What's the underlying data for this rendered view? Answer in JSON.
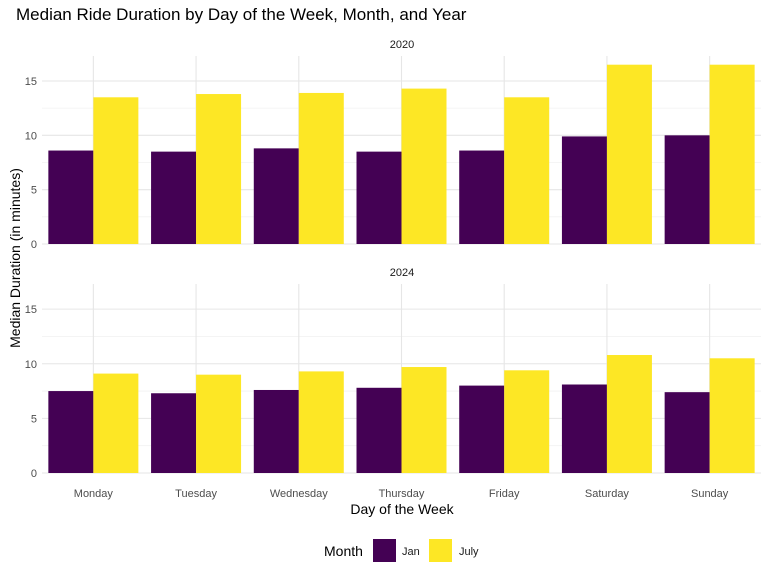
{
  "chart_data": {
    "type": "bar",
    "title": "Median Ride Duration by Day of the Week, Month, and Year",
    "xlabel": "Day of the Week",
    "ylabel": "Median Duration (in minutes)",
    "categories": [
      "Monday",
      "Tuesday",
      "Wednesday",
      "Thursday",
      "Friday",
      "Saturday",
      "Sunday"
    ],
    "ylim": [
      0,
      17.3
    ],
    "yticks": [
      "0",
      "5",
      "10",
      "15"
    ],
    "grid": true,
    "legend": {
      "title": "Month",
      "placement": "bottom",
      "entries": [
        "Jan",
        "July"
      ]
    },
    "colors": {
      "Jan": "#440154",
      "July": "#FDE725"
    },
    "panels": [
      {
        "label": "2020",
        "series": [
          {
            "name": "Jan",
            "values": [
              8.6,
              8.5,
              8.8,
              8.5,
              8.6,
              9.9,
              10.0
            ]
          },
          {
            "name": "July",
            "values": [
              13.5,
              13.8,
              13.9,
              14.3,
              13.5,
              16.5,
              16.5
            ]
          }
        ]
      },
      {
        "label": "2024",
        "series": [
          {
            "name": "Jan",
            "values": [
              7.5,
              7.3,
              7.6,
              7.8,
              8.0,
              8.1,
              7.4
            ]
          },
          {
            "name": "July",
            "values": [
              9.1,
              9.0,
              9.3,
              9.7,
              9.4,
              10.8,
              10.5
            ]
          }
        ]
      }
    ]
  }
}
